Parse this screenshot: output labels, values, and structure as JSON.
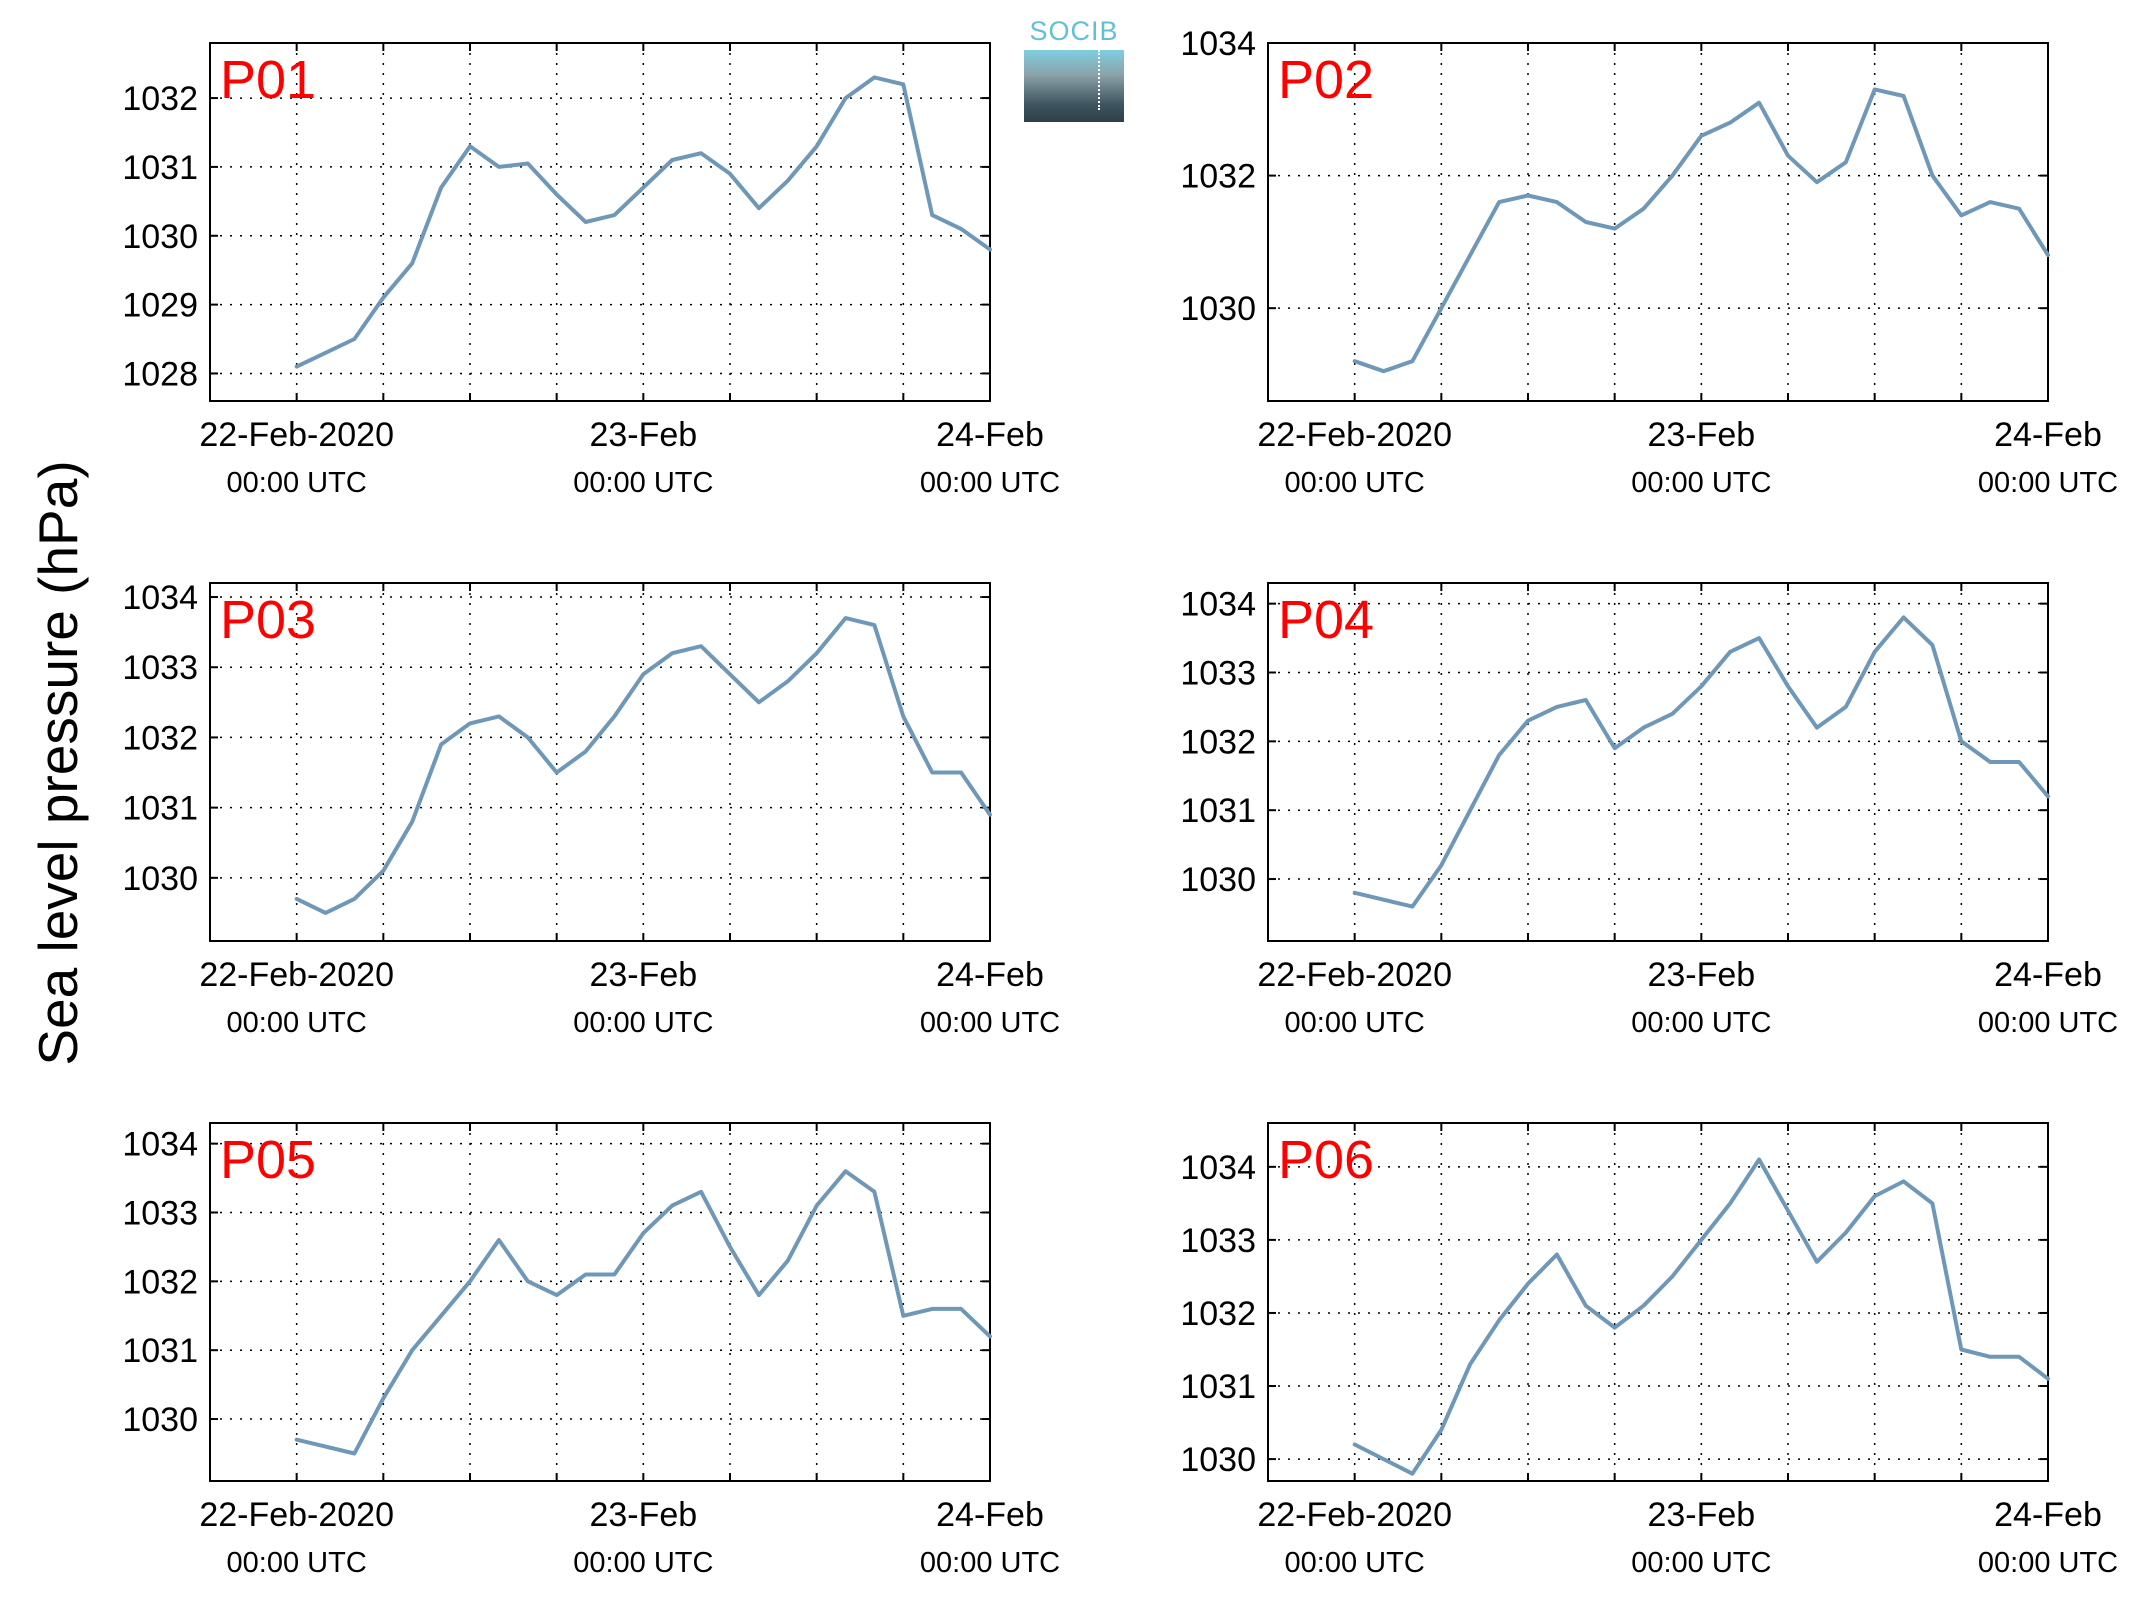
{
  "figure": {
    "ylabel": "Sea level pressure (hPa)",
    "logo_text": "SOCIB",
    "line_color": "#6f98b8",
    "panel_label_color": "#ff0000"
  },
  "chart_data": [
    {
      "type": "line",
      "panel_label": "P01",
      "xticks": [
        {
          "date": "22-Feb-2020",
          "time": "00:00 UTC"
        },
        {
          "date": "23-Feb",
          "time": "00:00 UTC"
        },
        {
          "date": "24-Feb",
          "time": "00:00 UTC"
        }
      ],
      "x_hours": [
        0,
        2,
        4,
        6,
        8,
        10,
        12,
        14,
        16,
        18,
        20,
        22,
        24,
        26,
        28,
        30,
        32,
        34,
        36,
        38,
        40,
        42,
        44,
        46,
        48
      ],
      "xlim": [
        -6,
        48
      ],
      "ylim": [
        1027.6,
        1032.8
      ],
      "yticks": [
        1028,
        1029,
        1030,
        1031,
        1032
      ],
      "grid": true,
      "series": [
        {
          "values": [
            1028.1,
            1028.3,
            1028.5,
            1029.1,
            1029.6,
            1030.7,
            1031.3,
            1031.0,
            1031.05,
            1030.6,
            1030.2,
            1030.3,
            1030.7,
            1031.1,
            1031.2,
            1030.9,
            1030.4,
            1030.8,
            1031.3,
            1032.0,
            1032.3,
            1032.2,
            1030.3,
            1030.1,
            1029.8
          ]
        }
      ]
    },
    {
      "type": "line",
      "panel_label": "P02",
      "xticks": [
        {
          "date": "22-Feb-2020",
          "time": "00:00 UTC"
        },
        {
          "date": "23-Feb",
          "time": "00:00 UTC"
        },
        {
          "date": "24-Feb",
          "time": "00:00 UTC"
        }
      ],
      "x_hours": [
        0,
        2,
        4,
        6,
        8,
        10,
        12,
        14,
        16,
        18,
        20,
        22,
        24,
        26,
        28,
        30,
        32,
        34,
        36,
        38,
        40,
        42,
        44,
        46,
        48
      ],
      "xlim": [
        -6,
        48
      ],
      "ylim": [
        1028.6,
        1034.0
      ],
      "yticks": [
        1030,
        1032,
        1034
      ],
      "grid": true,
      "series": [
        {
          "values": [
            1029.2,
            1029.05,
            1029.2,
            1030.0,
            1030.8,
            1031.6,
            1031.7,
            1031.6,
            1031.3,
            1031.2,
            1031.5,
            1032.0,
            1032.6,
            1032.8,
            1033.1,
            1032.3,
            1031.9,
            1032.2,
            1033.3,
            1033.2,
            1032.0,
            1031.4,
            1031.6,
            1031.5,
            1030.8
          ]
        }
      ]
    },
    {
      "type": "line",
      "panel_label": "P03",
      "xticks": [
        {
          "date": "22-Feb-2020",
          "time": "00:00 UTC"
        },
        {
          "date": "23-Feb",
          "time": "00:00 UTC"
        },
        {
          "date": "24-Feb",
          "time": "00:00 UTC"
        }
      ],
      "x_hours": [
        0,
        2,
        4,
        6,
        8,
        10,
        12,
        14,
        16,
        18,
        20,
        22,
        24,
        26,
        28,
        30,
        32,
        34,
        36,
        38,
        40,
        42,
        44,
        46,
        48
      ],
      "xlim": [
        -6,
        48
      ],
      "ylim": [
        1029.1,
        1034.2
      ],
      "yticks": [
        1030,
        1031,
        1032,
        1033,
        1034
      ],
      "grid": true,
      "series": [
        {
          "values": [
            1029.7,
            1029.5,
            1029.7,
            1030.1,
            1030.8,
            1031.9,
            1032.2,
            1032.3,
            1032.0,
            1031.5,
            1031.8,
            1032.3,
            1032.9,
            1033.2,
            1033.3,
            1032.9,
            1032.5,
            1032.8,
            1033.2,
            1033.7,
            1033.6,
            1032.3,
            1031.5,
            1031.5,
            1030.9
          ]
        }
      ]
    },
    {
      "type": "line",
      "panel_label": "P04",
      "xticks": [
        {
          "date": "22-Feb-2020",
          "time": "00:00 UTC"
        },
        {
          "date": "23-Feb",
          "time": "00:00 UTC"
        },
        {
          "date": "24-Feb",
          "time": "00:00 UTC"
        }
      ],
      "x_hours": [
        0,
        2,
        4,
        6,
        8,
        10,
        12,
        14,
        16,
        18,
        20,
        22,
        24,
        26,
        28,
        30,
        32,
        34,
        36,
        38,
        40,
        42,
        44,
        46,
        48
      ],
      "xlim": [
        -6,
        48
      ],
      "ylim": [
        1029.1,
        1034.3
      ],
      "yticks": [
        1030,
        1031,
        1032,
        1033,
        1034
      ],
      "grid": true,
      "series": [
        {
          "values": [
            1029.8,
            1029.7,
            1029.6,
            1030.2,
            1031.0,
            1031.8,
            1032.3,
            1032.5,
            1032.6,
            1031.9,
            1032.2,
            1032.4,
            1032.8,
            1033.3,
            1033.5,
            1032.8,
            1032.2,
            1032.5,
            1033.3,
            1033.8,
            1033.4,
            1032.0,
            1031.7,
            1031.7,
            1031.2
          ]
        }
      ]
    },
    {
      "type": "line",
      "panel_label": "P05",
      "xticks": [
        {
          "date": "22-Feb-2020",
          "time": "00:00 UTC"
        },
        {
          "date": "23-Feb",
          "time": "00:00 UTC"
        },
        {
          "date": "24-Feb",
          "time": "00:00 UTC"
        }
      ],
      "x_hours": [
        0,
        2,
        4,
        6,
        8,
        10,
        12,
        14,
        16,
        18,
        20,
        22,
        24,
        26,
        28,
        30,
        32,
        34,
        36,
        38,
        40,
        42,
        44,
        46,
        48
      ],
      "xlim": [
        -6,
        48
      ],
      "ylim": [
        1029.1,
        1034.3
      ],
      "yticks": [
        1030,
        1031,
        1032,
        1033,
        1034
      ],
      "grid": true,
      "series": [
        {
          "values": [
            1029.7,
            1029.6,
            1029.5,
            1030.3,
            1031.0,
            1031.5,
            1032.0,
            1032.6,
            1032.0,
            1031.8,
            1032.1,
            1032.1,
            1032.7,
            1033.1,
            1033.3,
            1032.5,
            1031.8,
            1032.3,
            1033.1,
            1033.6,
            1033.3,
            1031.5,
            1031.6,
            1031.6,
            1031.2
          ]
        }
      ]
    },
    {
      "type": "line",
      "panel_label": "P06",
      "xticks": [
        {
          "date": "22-Feb-2020",
          "time": "00:00 UTC"
        },
        {
          "date": "23-Feb",
          "time": "00:00 UTC"
        },
        {
          "date": "24-Feb",
          "time": "00:00 UTC"
        }
      ],
      "x_hours": [
        0,
        2,
        4,
        6,
        8,
        10,
        12,
        14,
        16,
        18,
        20,
        22,
        24,
        26,
        28,
        30,
        32,
        34,
        36,
        38,
        40,
        42,
        44,
        46,
        48
      ],
      "xlim": [
        -6,
        48
      ],
      "ylim": [
        1029.7,
        1034.6
      ],
      "yticks": [
        1030,
        1031,
        1032,
        1033,
        1034
      ],
      "grid": true,
      "series": [
        {
          "values": [
            1030.2,
            1030.0,
            1029.8,
            1030.4,
            1031.3,
            1031.9,
            1032.4,
            1032.8,
            1032.1,
            1031.8,
            1032.1,
            1032.5,
            1033.0,
            1033.5,
            1034.1,
            1033.4,
            1032.7,
            1033.1,
            1033.6,
            1033.8,
            1033.5,
            1031.5,
            1031.4,
            1031.4,
            1031.1
          ]
        }
      ]
    }
  ]
}
